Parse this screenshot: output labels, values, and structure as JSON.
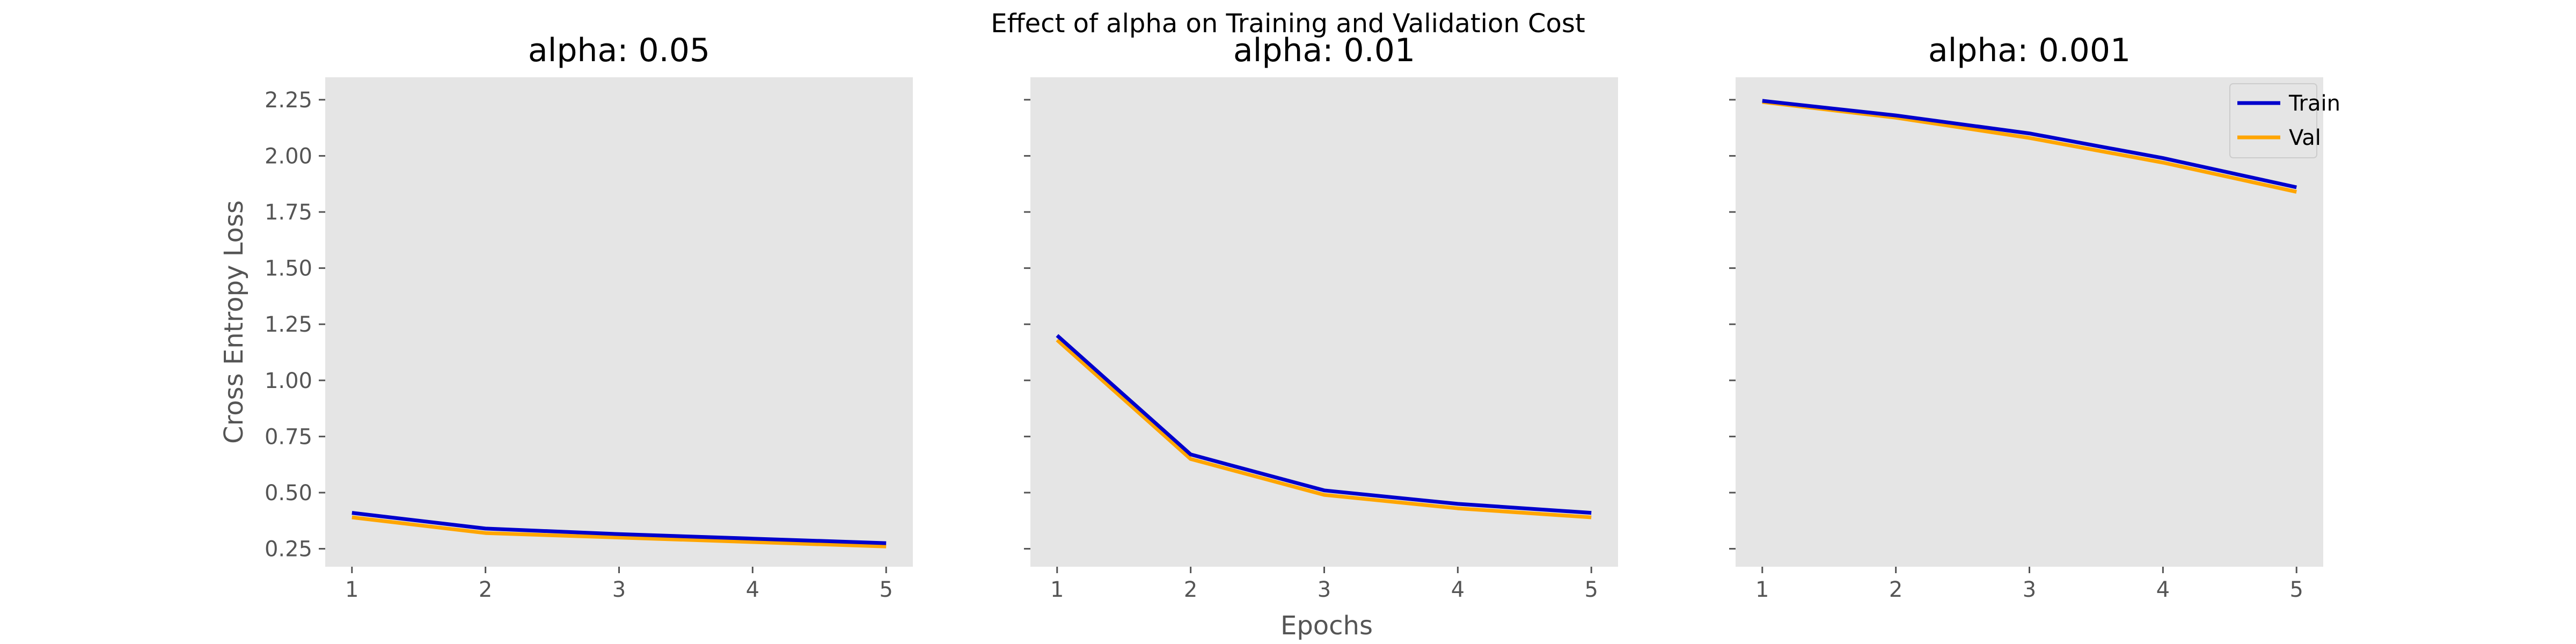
{
  "chart_data": {
    "type": "line",
    "title": "Effect of alpha on Training and Validation Cost",
    "xlabel": "Epochs",
    "ylabel": "Cross Entropy Loss",
    "x": [
      1,
      2,
      3,
      4,
      5
    ],
    "x_ticks": [
      "1",
      "2",
      "3",
      "4",
      "5"
    ],
    "y_ticks": [
      "0.25",
      "0.50",
      "0.75",
      "1.00",
      "1.25",
      "1.50",
      "1.75",
      "2.00",
      "2.25"
    ],
    "ylim": [
      0.17,
      2.35
    ],
    "xlim": [
      0.8,
      5.2
    ],
    "grid": false,
    "shared_y": true,
    "legend": {
      "placement": "top-right",
      "panel": 2,
      "entries": [
        "Train",
        "Val"
      ]
    },
    "series_styles": {
      "Train": {
        "color": "#0000cc"
      },
      "Val": {
        "color": "#ffa500"
      }
    },
    "panels": [
      {
        "title": "alpha: 0.05",
        "series": [
          {
            "name": "Train",
            "values": [
              0.41,
              0.34,
              0.315,
              0.295,
              0.275
            ]
          },
          {
            "name": "Val",
            "values": [
              0.39,
              0.32,
              0.3,
              0.28,
              0.26
            ]
          }
        ]
      },
      {
        "title": "alpha: 0.01",
        "series": [
          {
            "name": "Train",
            "values": [
              1.2,
              0.67,
              0.51,
              0.45,
              0.41
            ]
          },
          {
            "name": "Val",
            "values": [
              1.18,
              0.65,
              0.49,
              0.43,
              0.39
            ]
          }
        ]
      },
      {
        "title": "alpha: 0.001",
        "series": [
          {
            "name": "Train",
            "values": [
              2.245,
              2.18,
              2.1,
              1.99,
              1.86
            ]
          },
          {
            "name": "Val",
            "values": [
              2.24,
              2.17,
              2.08,
              1.97,
              1.84
            ]
          }
        ]
      }
    ],
    "colors": {
      "plot_background": "#e5e5e5",
      "tick_text": "#555555"
    }
  }
}
